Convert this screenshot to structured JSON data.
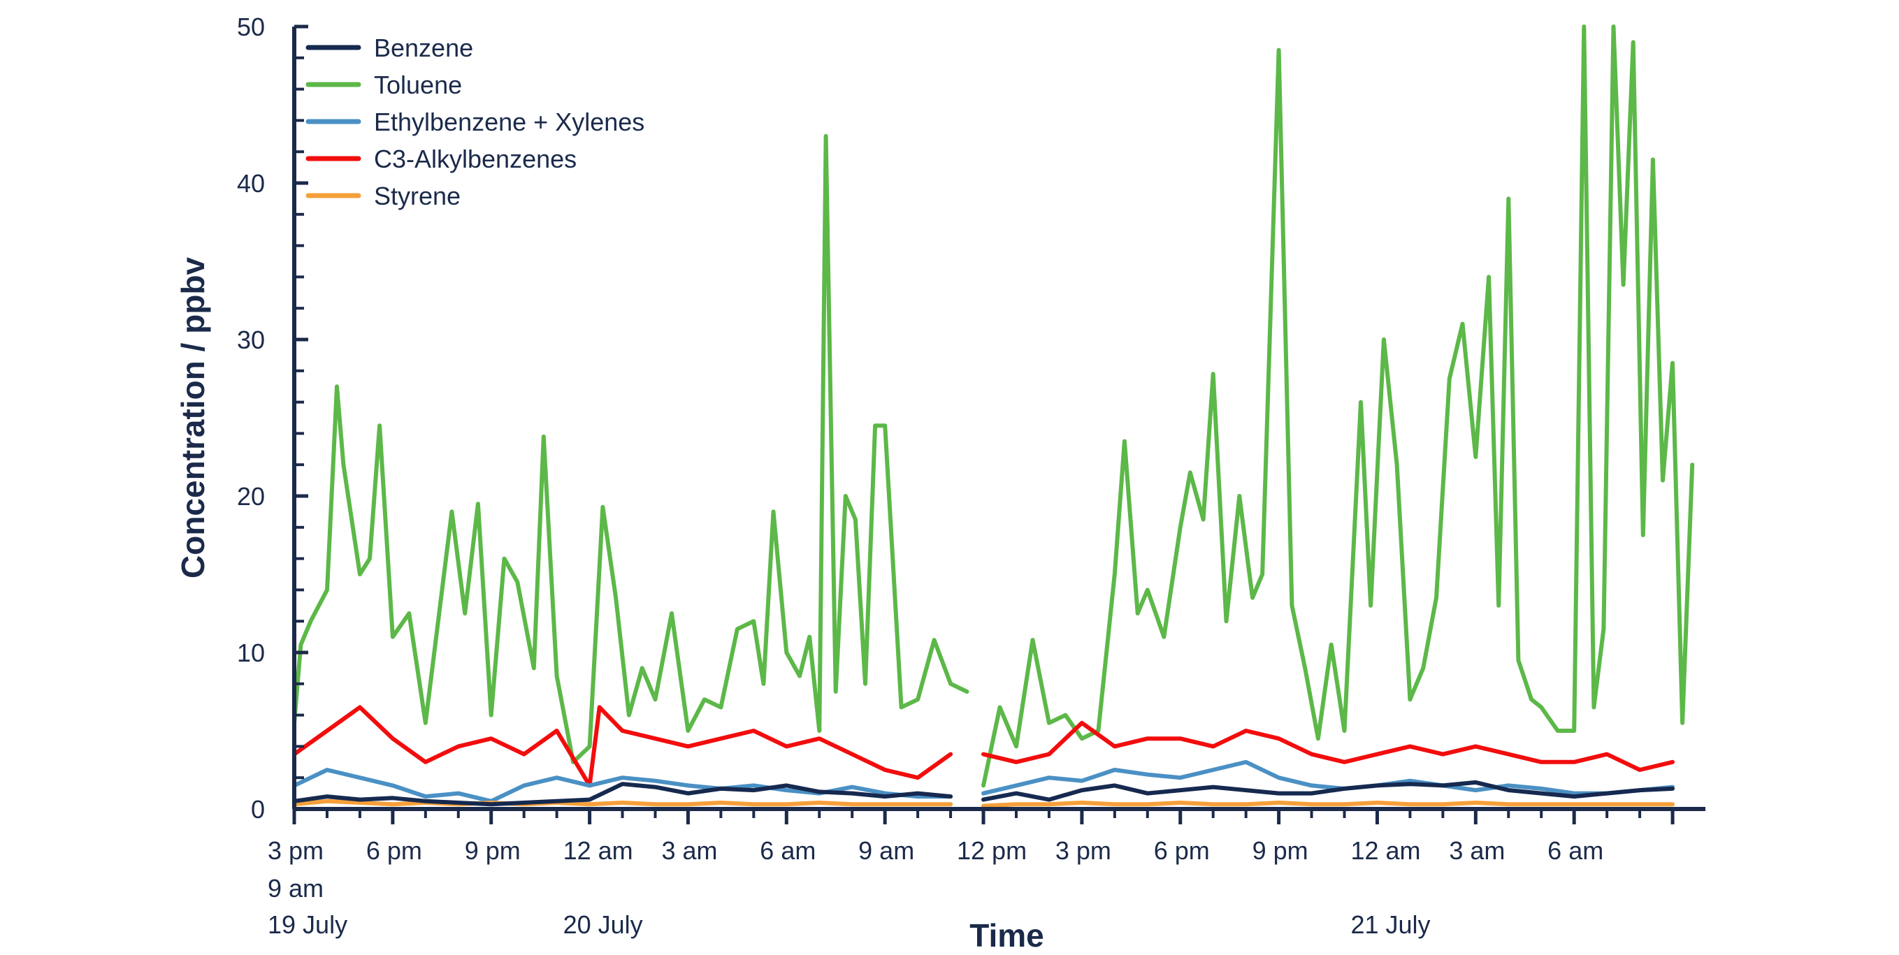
{
  "chart_data": {
    "type": "line",
    "title": "",
    "xlabel": "Time",
    "ylabel": "Concentration / ppbv",
    "ylim": [
      0,
      50
    ],
    "yticks": [
      0,
      10,
      20,
      30,
      40,
      50
    ],
    "grid": false,
    "legend_position": "top-left",
    "colors": {
      "axis": "#1b2a4a",
      "Benzene": "#16294f",
      "Toluene": "#5cb848",
      "Ethylbenzene + Xylenes": "#4a90c4",
      "C3-Alkylbenzenes": "#f20d0d",
      "Styrene": "#f5a03a"
    },
    "x_time_labels": [
      {
        "text": "3 pm",
        "segment": 1,
        "hour": 15
      },
      {
        "text": "6 pm",
        "segment": 1,
        "hour": 18
      },
      {
        "text": "9 pm",
        "segment": 1,
        "hour": 21
      },
      {
        "text": "12 am",
        "segment": 1,
        "hour": 24
      },
      {
        "text": "3 am",
        "segment": 1,
        "hour": 27
      },
      {
        "text": "6 am",
        "segment": 1,
        "hour": 30
      },
      {
        "text": "9 am",
        "segment": 1,
        "hour": 33
      },
      {
        "text": "12 pm",
        "segment": 2,
        "hour": 36
      },
      {
        "text": "3 pm",
        "segment": 2,
        "hour": 39
      },
      {
        "text": "6 pm",
        "segment": 2,
        "hour": 42
      },
      {
        "text": "9 pm",
        "segment": 2,
        "hour": 45
      },
      {
        "text": "12 am",
        "segment": 2,
        "hour": 48
      },
      {
        "text": "3 am",
        "segment": 2,
        "hour": 51
      },
      {
        "text": "6 am",
        "segment": 2,
        "hour": 54
      }
    ],
    "x_extra_label": {
      "text": "9 am",
      "hour": 15
    },
    "x_date_labels": [
      {
        "text": "19 July",
        "segment": 1,
        "hour": 15
      },
      {
        "text": "20 July",
        "segment": 1,
        "hour": 24
      },
      {
        "text": "21 July",
        "segment": 2,
        "hour": 48
      }
    ],
    "series": [
      {
        "name": "Benzene",
        "segment1": [
          [
            15,
            0.5
          ],
          [
            16,
            0.8
          ],
          [
            17,
            0.6
          ],
          [
            18,
            0.7
          ],
          [
            19,
            0.5
          ],
          [
            20,
            0.4
          ],
          [
            21,
            0.3
          ],
          [
            22,
            0.4
          ],
          [
            23,
            0.5
          ],
          [
            24,
            0.6
          ],
          [
            25,
            1.6
          ],
          [
            26,
            1.4
          ],
          [
            27,
            1.0
          ],
          [
            28,
            1.3
          ],
          [
            29,
            1.2
          ],
          [
            30,
            1.5
          ],
          [
            31,
            1.1
          ],
          [
            32,
            1.0
          ],
          [
            33,
            0.8
          ],
          [
            34,
            1.0
          ],
          [
            35,
            0.8
          ]
        ],
        "segment2": [
          [
            36,
            0.6
          ],
          [
            37,
            1.0
          ],
          [
            38,
            0.6
          ],
          [
            39,
            1.2
          ],
          [
            40,
            1.5
          ],
          [
            41,
            1.0
          ],
          [
            42,
            1.2
          ],
          [
            43,
            1.4
          ],
          [
            44,
            1.2
          ],
          [
            45,
            1.0
          ],
          [
            46,
            1.0
          ],
          [
            47,
            1.3
          ],
          [
            48,
            1.5
          ],
          [
            49,
            1.6
          ],
          [
            50,
            1.5
          ],
          [
            51,
            1.7
          ],
          [
            52,
            1.2
          ],
          [
            53,
            1.0
          ],
          [
            54,
            0.8
          ],
          [
            55,
            1.0
          ],
          [
            56,
            1.2
          ],
          [
            57,
            1.3
          ]
        ]
      },
      {
        "name": "Toluene",
        "segment1": [
          [
            15,
            5.5
          ],
          [
            15.2,
            10.5
          ],
          [
            15.5,
            12.0
          ],
          [
            16,
            14.0
          ],
          [
            16.3,
            27.0
          ],
          [
            16.5,
            22.0
          ],
          [
            17,
            15.0
          ],
          [
            17.3,
            16.0
          ],
          [
            17.6,
            24.5
          ],
          [
            18,
            11.0
          ],
          [
            18.5,
            12.5
          ],
          [
            19,
            5.5
          ],
          [
            19.8,
            19.0
          ],
          [
            20.2,
            12.5
          ],
          [
            20.6,
            19.5
          ],
          [
            21,
            6.0
          ],
          [
            21.4,
            16.0
          ],
          [
            21.8,
            14.5
          ],
          [
            22.3,
            9.0
          ],
          [
            22.6,
            23.8
          ],
          [
            23,
            8.5
          ],
          [
            23.5,
            3.0
          ],
          [
            24,
            4.0
          ],
          [
            24.4,
            19.3
          ],
          [
            24.8,
            13.5
          ],
          [
            25.2,
            6.0
          ],
          [
            25.6,
            9.0
          ],
          [
            26,
            7.0
          ],
          [
            26.5,
            12.5
          ],
          [
            27,
            5.0
          ],
          [
            27.5,
            7.0
          ],
          [
            28,
            6.5
          ],
          [
            28.5,
            11.5
          ],
          [
            29,
            12.0
          ],
          [
            29.3,
            8.0
          ],
          [
            29.6,
            19.0
          ],
          [
            30,
            10.0
          ],
          [
            30.4,
            8.5
          ],
          [
            30.7,
            11.0
          ],
          [
            31,
            5.0
          ],
          [
            31.2,
            43.0
          ],
          [
            31.5,
            7.5
          ],
          [
            31.8,
            20.0
          ],
          [
            32.1,
            18.5
          ],
          [
            32.4,
            8.0
          ],
          [
            32.7,
            24.5
          ],
          [
            33,
            24.5
          ],
          [
            33.5,
            6.5
          ],
          [
            34,
            7.0
          ],
          [
            34.5,
            10.8
          ],
          [
            35,
            8.0
          ],
          [
            35.5,
            7.5
          ]
        ],
        "segment2": [
          [
            36,
            1.5
          ],
          [
            36.5,
            6.5
          ],
          [
            37,
            4.0
          ],
          [
            37.5,
            10.8
          ],
          [
            38,
            5.5
          ],
          [
            38.5,
            6.0
          ],
          [
            39,
            4.5
          ],
          [
            39.5,
            5.0
          ],
          [
            40,
            15.0
          ],
          [
            40.3,
            23.5
          ],
          [
            40.7,
            12.5
          ],
          [
            41,
            14.0
          ],
          [
            41.5,
            11.0
          ],
          [
            42,
            18.0
          ],
          [
            42.3,
            21.5
          ],
          [
            42.7,
            18.5
          ],
          [
            43,
            27.8
          ],
          [
            43.4,
            12.0
          ],
          [
            43.8,
            20.0
          ],
          [
            44.2,
            13.5
          ],
          [
            44.5,
            15.0
          ],
          [
            45,
            48.5
          ],
          [
            45.4,
            13.0
          ],
          [
            45.8,
            9.0
          ],
          [
            46.2,
            4.5
          ],
          [
            46.6,
            10.5
          ],
          [
            47,
            5.0
          ],
          [
            47.5,
            26.0
          ],
          [
            47.8,
            13.0
          ],
          [
            48.2,
            30.0
          ],
          [
            48.6,
            22.0
          ],
          [
            49,
            7.0
          ],
          [
            49.4,
            9.0
          ],
          [
            49.8,
            13.5
          ],
          [
            50.2,
            27.5
          ],
          [
            50.6,
            31.0
          ],
          [
            51,
            22.5
          ],
          [
            51.4,
            34.0
          ],
          [
            51.7,
            13.0
          ],
          [
            52,
            39.0
          ],
          [
            52.3,
            9.5
          ],
          [
            52.7,
            7.0
          ],
          [
            53,
            6.5
          ],
          [
            53.5,
            5.0
          ],
          [
            54,
            5.0
          ],
          [
            54.3,
            50.0
          ],
          [
            54.6,
            6.5
          ],
          [
            54.9,
            11.5
          ],
          [
            55.2,
            50.0
          ],
          [
            55.5,
            33.5
          ],
          [
            55.8,
            49.0
          ],
          [
            56.1,
            17.5
          ],
          [
            56.4,
            41.5
          ],
          [
            56.7,
            21.0
          ],
          [
            57,
            28.5
          ],
          [
            57.3,
            5.5
          ],
          [
            57.6,
            22.0
          ]
        ]
      },
      {
        "name": "Ethylbenzene + Xylenes",
        "segment1": [
          [
            15,
            1.5
          ],
          [
            16,
            2.5
          ],
          [
            17,
            2.0
          ],
          [
            18,
            1.5
          ],
          [
            19,
            0.8
          ],
          [
            20,
            1.0
          ],
          [
            21,
            0.5
          ],
          [
            22,
            1.5
          ],
          [
            23,
            2.0
          ],
          [
            24,
            1.5
          ],
          [
            25,
            2.0
          ],
          [
            26,
            1.8
          ],
          [
            27,
            1.5
          ],
          [
            28,
            1.3
          ],
          [
            29,
            1.5
          ],
          [
            30,
            1.2
          ],
          [
            31,
            1.0
          ],
          [
            32,
            1.4
          ],
          [
            33,
            1.0
          ],
          [
            34,
            0.8
          ],
          [
            35,
            0.8
          ]
        ],
        "segment2": [
          [
            36,
            1.0
          ],
          [
            37,
            1.5
          ],
          [
            38,
            2.0
          ],
          [
            39,
            1.8
          ],
          [
            40,
            2.5
          ],
          [
            41,
            2.2
          ],
          [
            42,
            2.0
          ],
          [
            43,
            2.5
          ],
          [
            44,
            3.0
          ],
          [
            45,
            2.0
          ],
          [
            46,
            1.5
          ],
          [
            47,
            1.3
          ],
          [
            48,
            1.5
          ],
          [
            49,
            1.8
          ],
          [
            50,
            1.5
          ],
          [
            51,
            1.2
          ],
          [
            52,
            1.5
          ],
          [
            53,
            1.3
          ],
          [
            54,
            1.0
          ],
          [
            55,
            1.0
          ],
          [
            56,
            1.2
          ],
          [
            57,
            1.4
          ]
        ]
      },
      {
        "name": "C3-Alkylbenzenes",
        "segment1": [
          [
            15,
            3.5
          ],
          [
            16,
            5.0
          ],
          [
            17,
            6.5
          ],
          [
            18,
            4.5
          ],
          [
            19,
            3.0
          ],
          [
            20,
            4.0
          ],
          [
            21,
            4.5
          ],
          [
            22,
            3.5
          ],
          [
            23,
            5.0
          ],
          [
            24,
            1.5
          ],
          [
            24.3,
            6.5
          ],
          [
            25,
            5.0
          ],
          [
            26,
            4.5
          ],
          [
            27,
            4.0
          ],
          [
            28,
            4.5
          ],
          [
            29,
            5.0
          ],
          [
            30,
            4.0
          ],
          [
            31,
            4.5
          ],
          [
            32,
            3.5
          ],
          [
            33,
            2.5
          ],
          [
            34,
            2.0
          ],
          [
            35,
            3.5
          ]
        ],
        "segment2": [
          [
            36,
            3.5
          ],
          [
            37,
            3.0
          ],
          [
            38,
            3.5
          ],
          [
            39,
            5.5
          ],
          [
            40,
            4.0
          ],
          [
            41,
            4.5
          ],
          [
            42,
            4.5
          ],
          [
            43,
            4.0
          ],
          [
            44,
            5.0
          ],
          [
            45,
            4.5
          ],
          [
            46,
            3.5
          ],
          [
            47,
            3.0
          ],
          [
            48,
            3.5
          ],
          [
            49,
            4.0
          ],
          [
            50,
            3.5
          ],
          [
            51,
            4.0
          ],
          [
            52,
            3.5
          ],
          [
            53,
            3.0
          ],
          [
            54,
            3.0
          ],
          [
            55,
            3.5
          ],
          [
            56,
            2.5
          ],
          [
            57,
            3.0
          ]
        ]
      },
      {
        "name": "Styrene",
        "segment1": [
          [
            15,
            0.3
          ],
          [
            16,
            0.5
          ],
          [
            17,
            0.4
          ],
          [
            18,
            0.3
          ],
          [
            19,
            0.4
          ],
          [
            20,
            0.3
          ],
          [
            21,
            0.4
          ],
          [
            22,
            0.3
          ],
          [
            23,
            0.4
          ],
          [
            24,
            0.3
          ],
          [
            25,
            0.4
          ],
          [
            26,
            0.3
          ],
          [
            27,
            0.3
          ],
          [
            28,
            0.4
          ],
          [
            29,
            0.3
          ],
          [
            30,
            0.3
          ],
          [
            31,
            0.4
          ],
          [
            32,
            0.3
          ],
          [
            33,
            0.3
          ],
          [
            34,
            0.3
          ],
          [
            35,
            0.3
          ]
        ],
        "segment2": [
          [
            36,
            0.2
          ],
          [
            37,
            0.3
          ],
          [
            38,
            0.3
          ],
          [
            39,
            0.4
          ],
          [
            40,
            0.3
          ],
          [
            41,
            0.3
          ],
          [
            42,
            0.4
          ],
          [
            43,
            0.3
          ],
          [
            44,
            0.3
          ],
          [
            45,
            0.4
          ],
          [
            46,
            0.3
          ],
          [
            47,
            0.3
          ],
          [
            48,
            0.4
          ],
          [
            49,
            0.3
          ],
          [
            50,
            0.3
          ],
          [
            51,
            0.4
          ],
          [
            52,
            0.3
          ],
          [
            53,
            0.3
          ],
          [
            54,
            0.3
          ],
          [
            55,
            0.3
          ],
          [
            56,
            0.3
          ],
          [
            57,
            0.3
          ]
        ]
      }
    ]
  }
}
